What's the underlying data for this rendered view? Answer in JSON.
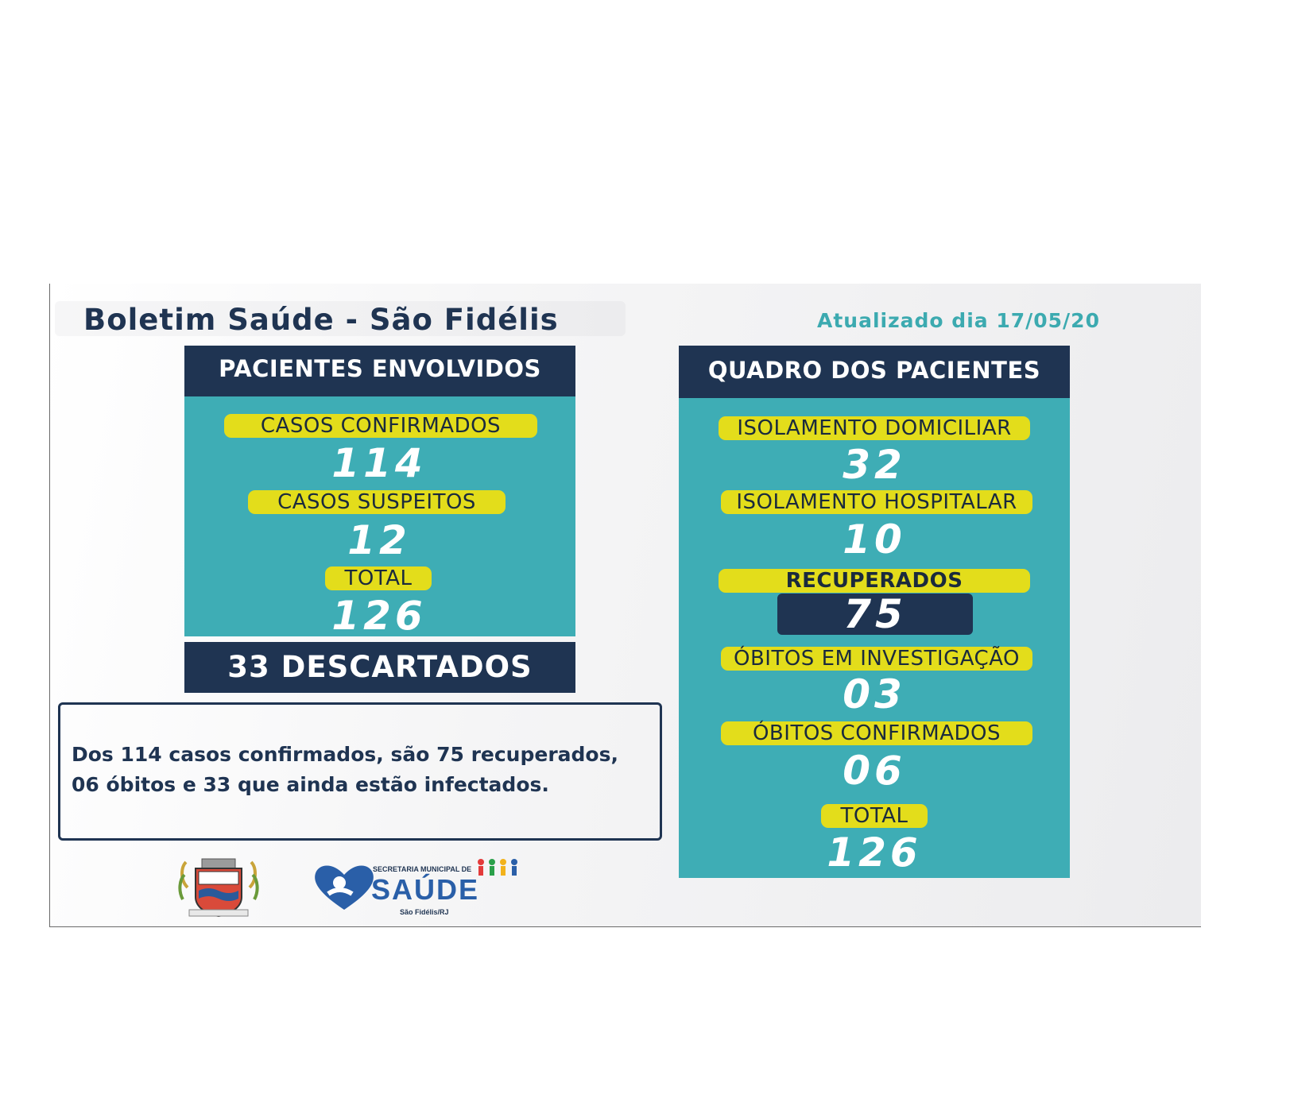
{
  "header": {
    "title": "Boletim Saúde - São Fidélis",
    "updated": "Atualizado dia 17/05/20"
  },
  "left_panel": {
    "heading": "PACIENTES ENVOLVIDOS",
    "items": [
      {
        "label": "CASOS CONFIRMADOS",
        "value": "114"
      },
      {
        "label": "CASOS SUSPEITOS",
        "value": "12"
      },
      {
        "label": "TOTAL",
        "value": "126"
      }
    ],
    "discarded": "33 DESCARTADOS"
  },
  "right_panel": {
    "heading": "QUADRO DOS PACIENTES",
    "items": [
      {
        "label": "ISOLAMENTO DOMICILIAR",
        "value": "32"
      },
      {
        "label": "ISOLAMENTO HOSPITALAR",
        "value": "10"
      },
      {
        "label": "RECUPERADOS",
        "value": "75"
      },
      {
        "label": "ÓBITOS EM INVESTIGAÇÃO",
        "value": "03"
      },
      {
        "label": "ÓBITOS CONFIRMADOS",
        "value": "06"
      },
      {
        "label": "TOTAL",
        "value": "126"
      }
    ]
  },
  "note": {
    "line1": "Dos 114 casos confirmados, são 75 recuperados,",
    "line2": "06 óbitos e 33 que ainda estão infectados."
  },
  "logos": {
    "crest_icon": "municipal-crest-icon",
    "saude_logo_top": "SECRETARIA MUNICIPAL DE",
    "saude_logo_main": "SAÚDE",
    "saude_logo_sub": "São Fidélis/RJ"
  },
  "colors": {
    "navy": "#1f3452",
    "teal": "#3eadb5",
    "yellow": "#e3dd1b",
    "accent_teal_text": "#3caab0"
  }
}
